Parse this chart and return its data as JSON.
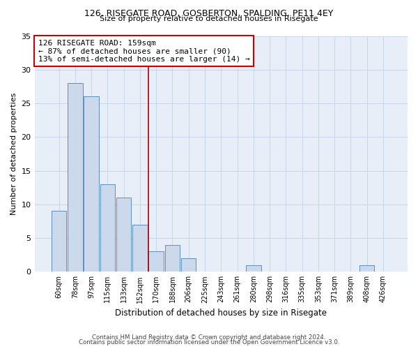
{
  "title1": "126, RISEGATE ROAD, GOSBERTON, SPALDING, PE11 4EY",
  "title2": "Size of property relative to detached houses in Risegate",
  "xlabel": "Distribution of detached houses by size in Risegate",
  "ylabel": "Number of detached properties",
  "categories": [
    "60sqm",
    "78sqm",
    "97sqm",
    "115sqm",
    "133sqm",
    "152sqm",
    "170sqm",
    "188sqm",
    "206sqm",
    "225sqm",
    "243sqm",
    "261sqm",
    "280sqm",
    "298sqm",
    "316sqm",
    "335sqm",
    "353sqm",
    "371sqm",
    "389sqm",
    "408sqm",
    "426sqm"
  ],
  "values": [
    9,
    28,
    26,
    13,
    11,
    7,
    3,
    4,
    2,
    0,
    0,
    0,
    1,
    0,
    0,
    0,
    0,
    0,
    0,
    1,
    0
  ],
  "bar_color": "#ccd9ea",
  "bar_edge_color": "#5b8fc9",
  "vline_color": "#aa0000",
  "vline_index": 5.5,
  "annotation_text": "126 RISEGATE ROAD: 159sqm\n← 87% of detached houses are smaller (90)\n13% of semi-detached houses are larger (14) →",
  "annotation_box_color": "white",
  "annotation_box_edge_color": "#cc0000",
  "ylim": [
    0,
    35
  ],
  "yticks": [
    0,
    5,
    10,
    15,
    20,
    25,
    30,
    35
  ],
  "grid_color": "#c8d4e8",
  "bg_color": "#e8eef8",
  "footer_line1": "Contains HM Land Registry data © Crown copyright and database right 2024.",
  "footer_line2": "Contains public sector information licensed under the Open Government Licence v3.0."
}
